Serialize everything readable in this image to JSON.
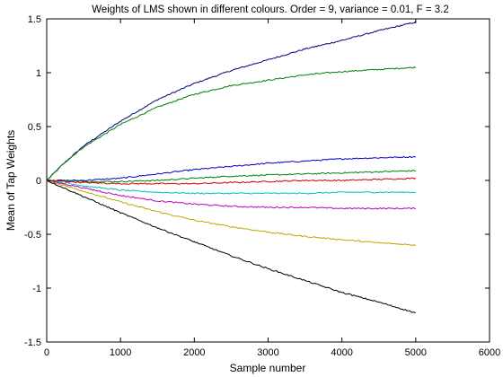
{
  "chart_data": {
    "type": "line",
    "title": "Weights of LMS shown in different colours. Order = 9, variance = 0.01, F = 3.2",
    "xlabel": "Sample number",
    "ylabel": "Mean of Tap Weights",
    "xlim": [
      0,
      6000
    ],
    "ylim": [
      -1.5,
      1.5
    ],
    "xticks": [
      0,
      1000,
      2000,
      3000,
      4000,
      5000,
      6000
    ],
    "yticks": [
      1.5,
      1,
      0.5,
      0,
      -0.5,
      -1,
      -1.5
    ],
    "xtick_labels": [
      "0",
      "1000",
      "2000",
      "3000",
      "4000",
      "5000",
      "6000"
    ],
    "ytick_labels": [
      "1.5",
      "1",
      "0.5",
      "0",
      "-0.5",
      "-1",
      "-1.5"
    ],
    "grid": false,
    "legend": "none",
    "series": [
      {
        "color": "#00007f",
        "x": [
          0,
          250,
          500,
          1000,
          1500,
          2000,
          2500,
          3000,
          3500,
          4000,
          4500,
          5000
        ],
        "values": [
          0,
          0.17,
          0.32,
          0.55,
          0.75,
          0.9,
          1.02,
          1.12,
          1.22,
          1.3,
          1.39,
          1.47
        ]
      },
      {
        "color": "#007f00",
        "x": [
          0,
          250,
          500,
          1000,
          1500,
          2000,
          2500,
          3000,
          3500,
          4000,
          4500,
          5000
        ],
        "values": [
          0,
          0.17,
          0.31,
          0.52,
          0.68,
          0.8,
          0.88,
          0.93,
          0.98,
          1.01,
          1.03,
          1.05
        ]
      },
      {
        "color": "#0000cc",
        "x": [
          0,
          500,
          1000,
          1500,
          2000,
          2500,
          3000,
          3500,
          4000,
          4500,
          5000
        ],
        "values": [
          0,
          0.0,
          0.02,
          0.06,
          0.1,
          0.13,
          0.16,
          0.18,
          0.2,
          0.21,
          0.22
        ]
      },
      {
        "color": "#008000",
        "x": [
          0,
          500,
          1000,
          1500,
          2000,
          2500,
          3000,
          3500,
          4000,
          4500,
          5000
        ],
        "values": [
          0,
          -0.01,
          -0.01,
          0.0,
          0.02,
          0.04,
          0.05,
          0.06,
          0.07,
          0.08,
          0.09
        ]
      },
      {
        "color": "#cc0000",
        "x": [
          0,
          500,
          1000,
          1500,
          2000,
          2500,
          3000,
          3500,
          4000,
          4500,
          5000
        ],
        "values": [
          0,
          -0.02,
          -0.03,
          -0.03,
          -0.03,
          -0.02,
          -0.01,
          0.0,
          0.0,
          0.01,
          0.02
        ]
      },
      {
        "color": "#00bfbf",
        "x": [
          0,
          500,
          1000,
          1500,
          2000,
          2500,
          3000,
          3500,
          4000,
          4500,
          5000
        ],
        "values": [
          0,
          -0.05,
          -0.09,
          -0.11,
          -0.12,
          -0.12,
          -0.12,
          -0.12,
          -0.11,
          -0.11,
          -0.11
        ]
      },
      {
        "color": "#bf00bf",
        "x": [
          0,
          500,
          1000,
          1500,
          2000,
          2500,
          3000,
          3500,
          4000,
          4500,
          5000
        ],
        "values": [
          0,
          -0.07,
          -0.14,
          -0.19,
          -0.22,
          -0.24,
          -0.25,
          -0.25,
          -0.26,
          -0.26,
          -0.26
        ]
      },
      {
        "color": "#bfa600",
        "x": [
          0,
          500,
          1000,
          1500,
          2000,
          2500,
          3000,
          3500,
          4000,
          4500,
          5000
        ],
        "values": [
          0,
          -0.1,
          -0.2,
          -0.29,
          -0.37,
          -0.43,
          -0.48,
          -0.52,
          -0.55,
          -0.58,
          -0.6
        ]
      },
      {
        "color": "#000000",
        "x": [
          0,
          500,
          1000,
          1500,
          2000,
          2500,
          3000,
          3500,
          4000,
          4500,
          5000
        ],
        "values": [
          0,
          -0.15,
          -0.3,
          -0.44,
          -0.57,
          -0.7,
          -0.82,
          -0.93,
          -1.04,
          -1.13,
          -1.23
        ]
      }
    ]
  }
}
